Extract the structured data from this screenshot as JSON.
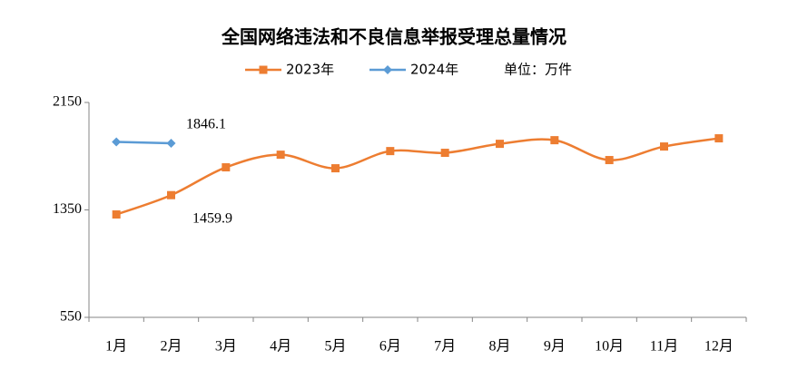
{
  "chart_data": {
    "type": "line",
    "title": "全国网络违法和不良信息举报受理总量情况",
    "unit_label": "单位：万件",
    "categories": [
      "1月",
      "2月",
      "3月",
      "4月",
      "5月",
      "6月",
      "7月",
      "8月",
      "9月",
      "10月",
      "11月",
      "12月"
    ],
    "series": [
      {
        "name": "2023年",
        "color": "#ed7d31",
        "marker": "square",
        "values": [
          1316,
          1459.9,
          1667,
          1761,
          1660,
          1788,
          1775,
          1842,
          1869,
          1721,
          1822,
          1883
        ]
      },
      {
        "name": "2024年",
        "color": "#5b9bd5",
        "marker": "diamond",
        "values": [
          1856,
          1846.1,
          null,
          null,
          null,
          null,
          null,
          null,
          null,
          null,
          null,
          null
        ]
      }
    ],
    "annotations": [
      "1846.1",
      "1459.9"
    ],
    "ylim": [
      550,
      2150
    ],
    "yticks": [
      550,
      1350,
      2150
    ],
    "grid": false
  }
}
